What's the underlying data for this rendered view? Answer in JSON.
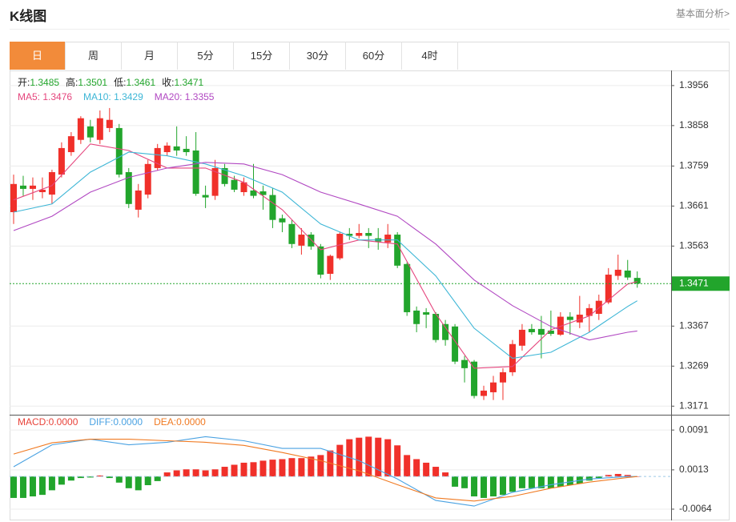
{
  "header": {
    "title": "K线图",
    "link": "基本面分析>"
  },
  "tabs": [
    "日",
    "周",
    "月",
    "5分",
    "15分",
    "30分",
    "60分",
    "4时"
  ],
  "active_tab": 0,
  "chart_data": [
    {
      "type": "candlestick",
      "legend": [
        {
          "label": "开:",
          "value": 1.3485
        },
        {
          "label": "高:",
          "value": 1.3501
        },
        {
          "label": "低:",
          "value": 1.3461
        },
        {
          "label": "收:",
          "value": 1.3471
        }
      ],
      "open": [
        1.3646,
        1.3711,
        1.3703,
        1.3695,
        1.3689,
        1.3738,
        1.3793,
        1.3823,
        1.3856,
        1.3823,
        1.3852,
        1.3852,
        1.3744,
        1.3652,
        1.3689,
        1.3754,
        1.3793,
        1.3807,
        1.3801,
        1.3797,
        1.3688,
        1.3686,
        1.3754,
        1.3725,
        1.3695,
        1.3699,
        1.3697,
        1.3688,
        1.3631,
        1.3617,
        1.3564,
        1.3591,
        1.3562,
        1.3495,
        1.3533,
        1.3593,
        1.3588,
        1.3595,
        1.3582,
        1.3572,
        1.3591,
        1.3519,
        1.3405,
        1.3401,
        1.3397,
        1.3372,
        1.3366,
        1.3284,
        1.328,
        1.3196,
        1.3205,
        1.3229,
        1.3254,
        1.3319,
        1.336,
        1.336,
        1.3356,
        1.3346,
        1.339,
        1.3376,
        1.3392,
        1.3397,
        1.3425,
        1.349,
        1.3503,
        1.3485
      ],
      "high": [
        1.3738,
        1.3735,
        1.3731,
        1.3731,
        1.375,
        1.3817,
        1.3842,
        1.3881,
        1.3872,
        1.3895,
        1.3901,
        1.3862,
        1.3754,
        1.3715,
        1.3774,
        1.3813,
        1.3817,
        1.3856,
        1.3832,
        1.3842,
        1.3711,
        1.3774,
        1.3764,
        1.3735,
        1.3731,
        1.3764,
        1.3711,
        1.3705,
        1.364,
        1.3627,
        1.3607,
        1.3597,
        1.3568,
        1.3542,
        1.3597,
        1.3607,
        1.3617,
        1.3607,
        1.3607,
        1.3617,
        1.3597,
        1.3523,
        1.3415,
        1.3411,
        1.3401,
        1.3382,
        1.3372,
        1.3294,
        1.3284,
        1.3221,
        1.3245,
        1.3264,
        1.3333,
        1.3372,
        1.3372,
        1.3392,
        1.3405,
        1.3401,
        1.3401,
        1.3441,
        1.3421,
        1.3444,
        1.3509,
        1.3542,
        1.3529,
        1.3501
      ],
      "low": [
        1.3617,
        1.3686,
        1.3676,
        1.368,
        1.3666,
        1.3731,
        1.3784,
        1.3813,
        1.3817,
        1.3813,
        1.3842,
        1.3731,
        1.3656,
        1.3633,
        1.368,
        1.3748,
        1.3784,
        1.3784,
        1.3784,
        1.3686,
        1.3656,
        1.3676,
        1.3709,
        1.3695,
        1.3686,
        1.368,
        1.3652,
        1.3607,
        1.3597,
        1.3558,
        1.3542,
        1.3554,
        1.3484,
        1.348,
        1.3529,
        1.3578,
        1.3582,
        1.3558,
        1.3554,
        1.3558,
        1.3509,
        1.3392,
        1.3352,
        1.3362,
        1.3327,
        1.3319,
        1.3274,
        1.3229,
        1.319,
        1.3186,
        1.3186,
        1.3186,
        1.3245,
        1.3307,
        1.3346,
        1.3288,
        1.3343,
        1.3343,
        1.3346,
        1.3362,
        1.3352,
        1.3382,
        1.3421,
        1.348,
        1.348,
        1.3461
      ],
      "close": [
        1.3715,
        1.3703,
        1.3711,
        1.3701,
        1.3744,
        1.3803,
        1.3832,
        1.3876,
        1.3829,
        1.3876,
        1.3872,
        1.3738,
        1.3666,
        1.3699,
        1.3764,
        1.3803,
        1.3809,
        1.3797,
        1.3793,
        1.3691,
        1.3682,
        1.3754,
        1.3715,
        1.3701,
        1.3719,
        1.3686,
        1.3688,
        1.3627,
        1.3621,
        1.3568,
        1.3591,
        1.3562,
        1.3493,
        1.3539,
        1.3593,
        1.3588,
        1.3595,
        1.3588,
        1.3574,
        1.3591,
        1.3515,
        1.3401,
        1.3372,
        1.3395,
        1.3333,
        1.3333,
        1.328,
        1.3264,
        1.3196,
        1.3209,
        1.3229,
        1.3254,
        1.3323,
        1.3358,
        1.3352,
        1.3346,
        1.3348,
        1.339,
        1.3382,
        1.3395,
        1.3411,
        1.3429,
        1.3493,
        1.3505,
        1.3486,
        1.3471
      ],
      "up_color": "#f0302a",
      "down_color": "#22a52c",
      "series": [
        {
          "name": "MA5: 1.3476",
          "color": "#e5457d",
          "x": [
            0,
            4,
            8,
            12,
            16,
            20,
            24,
            28,
            32,
            36,
            40,
            44,
            48,
            52,
            56,
            60,
            64,
            65
          ],
          "values": [
            1.3676,
            1.3711,
            1.3813,
            1.3797,
            1.3754,
            1.3754,
            1.3719,
            1.3652,
            1.3554,
            1.3578,
            1.3568,
            1.3397,
            1.3264,
            1.3268,
            1.3358,
            1.3392,
            1.347,
            1.3476
          ]
        },
        {
          "name": "MA10: 1.3429",
          "color": "#3db6d6",
          "x": [
            0,
            4,
            8,
            12,
            16,
            20,
            24,
            28,
            32,
            36,
            40,
            44,
            48,
            52,
            56,
            60,
            64,
            65
          ],
          "values": [
            1.3646,
            1.3666,
            1.3744,
            1.3793,
            1.3784,
            1.3764,
            1.3735,
            1.3695,
            1.3617,
            1.3578,
            1.3578,
            1.349,
            1.3362,
            1.3288,
            1.3303,
            1.3352,
            1.3415,
            1.3429
          ]
        },
        {
          "name": "MA20: 1.3355",
          "color": "#b148c2",
          "x": [
            0,
            4,
            8,
            12,
            16,
            20,
            24,
            28,
            32,
            36,
            40,
            44,
            48,
            52,
            56,
            60,
            64,
            65
          ],
          "values": [
            1.3601,
            1.3636,
            1.3695,
            1.3731,
            1.3754,
            1.3768,
            1.3764,
            1.3738,
            1.3695,
            1.3666,
            1.3636,
            1.3568,
            1.348,
            1.3417,
            1.3366,
            1.3333,
            1.3352,
            1.3355
          ]
        }
      ],
      "current_price": 1.3471,
      "ylim": [
        1.315,
        1.3993
      ],
      "yticks": [
        1.3171,
        1.3269,
        1.3367,
        1.3563,
        1.3661,
        1.3759,
        1.3858,
        1.3956
      ],
      "grid": true
    },
    {
      "type": "macd",
      "histogram": {
        "name": "MACD:0.0000",
        "color": "#e8433a",
        "values": [
          -0.0042,
          -0.0042,
          -0.0039,
          -0.0036,
          -0.0027,
          -0.0016,
          -0.0008,
          -0.0003,
          -0.0002,
          0.0002,
          -0.0003,
          -0.0012,
          -0.0023,
          -0.0027,
          -0.0017,
          -0.0009,
          0.0008,
          0.0012,
          0.0014,
          0.0014,
          0.0012,
          0.0014,
          0.0019,
          0.0023,
          0.0027,
          0.0028,
          0.0031,
          0.0033,
          0.0034,
          0.0036,
          0.0036,
          0.0039,
          0.0042,
          0.0051,
          0.0062,
          0.0073,
          0.0076,
          0.0078,
          0.0076,
          0.0073,
          0.0061,
          0.0042,
          0.0034,
          0.0027,
          0.0019,
          0.0008,
          -0.002,
          -0.0023,
          -0.0039,
          -0.0042,
          -0.0039,
          -0.0036,
          -0.003,
          -0.0023,
          -0.0023,
          -0.0023,
          -0.0023,
          -0.002,
          -0.0017,
          -0.0014,
          -0.0008,
          -0.0003,
          0.0003,
          0.0005,
          0.0003,
          0
        ]
      },
      "series": [
        {
          "name": "DIFF:0.0000",
          "color": "#4aa2e2",
          "x": [
            0,
            4,
            8,
            12,
            16,
            20,
            24,
            28,
            32,
            36,
            40,
            44,
            48,
            52,
            56,
            60,
            64,
            65
          ],
          "values": [
            0.0019,
            0.0062,
            0.0073,
            0.0062,
            0.0067,
            0.0078,
            0.007,
            0.0055,
            0.0055,
            0.0031,
            -0.0005,
            -0.0047,
            -0.0058,
            -0.0031,
            -0.0016,
            -0.0005,
            0,
            0
          ]
        },
        {
          "name": "DEA:0.0000",
          "color": "#f07a22",
          "x": [
            0,
            4,
            8,
            12,
            16,
            20,
            24,
            28,
            32,
            36,
            40,
            44,
            48,
            52,
            56,
            60,
            64,
            65
          ],
          "values": [
            0.0044,
            0.0066,
            0.0073,
            0.0073,
            0.007,
            0.0067,
            0.0061,
            0.0047,
            0.0031,
            0.0011,
            -0.0016,
            -0.0042,
            -0.0048,
            -0.0039,
            -0.0023,
            -0.0011,
            -0.0002,
            0
          ]
        }
      ],
      "ylim": [
        -0.0086,
        0.0121
      ],
      "yticks": [
        -0.0064,
        0.0013,
        0.0091
      ],
      "grid": true
    }
  ]
}
